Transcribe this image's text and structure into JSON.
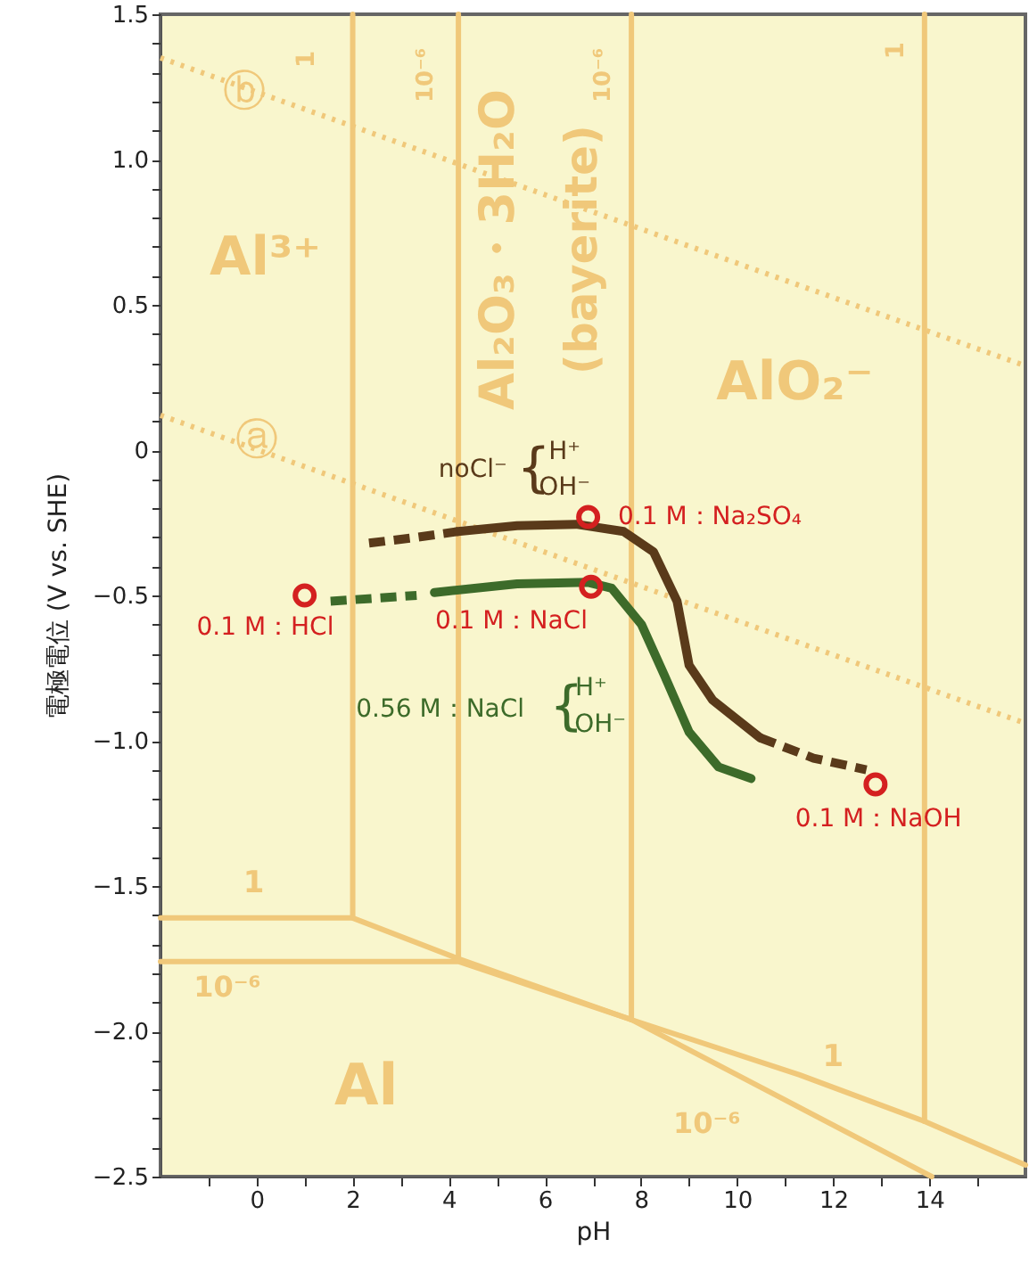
{
  "chart_data": {
    "type": "line",
    "xlabel": "pH",
    "ylabel": "電極電位 (V vs. SHE)",
    "xlim": [
      -2,
      16
    ],
    "ylim": [
      -2.5,
      1.5
    ],
    "xticks": [
      {
        "value": -1,
        "label": null
      },
      0,
      {
        "value": 1,
        "label": null
      },
      2,
      {
        "value": 3,
        "label": null
      },
      4,
      {
        "value": 5,
        "label": null
      },
      6,
      {
        "value": 7,
        "label": null
      },
      8,
      {
        "value": 9,
        "label": null
      },
      10,
      {
        "value": 11,
        "label": null
      },
      12,
      {
        "value": 13,
        "label": null
      },
      14,
      {
        "value": 15,
        "label": null
      }
    ],
    "yticks": [
      {
        "value": 1.5,
        "label": "1.5"
      },
      {
        "value": 1.4,
        "label": null
      },
      {
        "value": 1.3,
        "label": null
      },
      {
        "value": 1.2,
        "label": null
      },
      {
        "value": 1.1,
        "label": null
      },
      {
        "value": 1,
        "label": "1.0"
      },
      {
        "value": 0.9,
        "label": null
      },
      {
        "value": 0.8,
        "label": null
      },
      {
        "value": 0.7,
        "label": null
      },
      {
        "value": 0.6,
        "label": null
      },
      {
        "value": 0.5,
        "label": "0.5"
      },
      {
        "value": 0.4,
        "label": null
      },
      {
        "value": 0.3,
        "label": null
      },
      {
        "value": 0.2,
        "label": null
      },
      {
        "value": 0.1,
        "label": null
      },
      {
        "value": 0,
        "label": "0"
      },
      {
        "value": -0.1,
        "label": null
      },
      {
        "value": -0.2,
        "label": null
      },
      {
        "value": -0.3,
        "label": null
      },
      {
        "value": -0.4,
        "label": null
      },
      {
        "value": -0.5,
        "label": "−0.5"
      },
      {
        "value": -0.6,
        "label": null
      },
      {
        "value": -0.7,
        "label": null
      },
      {
        "value": -0.8,
        "label": null
      },
      {
        "value": -0.9,
        "label": null
      },
      {
        "value": -1,
        "label": "−1.0"
      },
      {
        "value": -1.1,
        "label": null
      },
      {
        "value": -1.2,
        "label": null
      },
      {
        "value": -1.3,
        "label": null
      },
      {
        "value": -1.4,
        "label": null
      },
      {
        "value": -1.5,
        "label": "−1.5"
      },
      {
        "value": -1.6,
        "label": null
      },
      {
        "value": -1.7,
        "label": null
      },
      {
        "value": -1.8,
        "label": null
      },
      {
        "value": -1.9,
        "label": null
      },
      {
        "value": -2,
        "label": "−2.0"
      },
      {
        "value": -2.1,
        "label": null
      },
      {
        "value": -2.2,
        "label": null
      },
      {
        "value": -2.3,
        "label": null
      },
      {
        "value": -2.4,
        "label": null
      },
      {
        "value": -2.5,
        "label": "−2.5"
      }
    ],
    "grid": false,
    "series": [
      {
        "color": "#f0c87a",
        "line_style": "solid",
        "x": [
          2.0,
          2.0
        ],
        "values": [
          1.5,
          -1.61
        ]
      },
      {
        "color": "#f0c87a",
        "line_style": "solid",
        "x": [
          4.2,
          4.2
        ],
        "values": [
          1.5,
          -1.75
        ]
      },
      {
        "color": "#f0c87a",
        "line_style": "solid",
        "x": [
          7.8,
          7.8
        ],
        "values": [
          1.5,
          -1.96
        ]
      },
      {
        "color": "#f0c87a",
        "line_style": "solid",
        "x": [
          13.9,
          13.9
        ],
        "values": [
          1.5,
          -2.31
        ]
      },
      {
        "color": "#f0c87a",
        "line_style": "solid",
        "x": [
          -2,
          2.0,
          4.2,
          7.8,
          11.3,
          13.9,
          16
        ],
        "values": [
          -1.61,
          -1.61,
          -1.75,
          -1.96,
          -2.15,
          -2.31,
          -2.46
        ]
      },
      {
        "color": "#f0c87a",
        "line_style": "solid",
        "x": [
          -2,
          4.2,
          7.8,
          10,
          14.05
        ],
        "values": [
          -1.76,
          -1.76,
          -1.96,
          -2.15,
          -2.5
        ]
      },
      {
        "color": "#f0c87a",
        "line_style": "dotted",
        "x": [
          -2,
          16
        ],
        "values": [
          1.35,
          0.29
        ]
      },
      {
        "color": "#f0c87a",
        "line_style": "dotted",
        "x": [
          -2,
          16
        ],
        "values": [
          0.12,
          -0.94
        ]
      },
      {
        "color": "#5a3a1a",
        "line_style": "dashed",
        "x": [
          2.34,
          3.33,
          4.19
        ],
        "values": [
          -0.32,
          -0.3,
          -0.28
        ]
      },
      {
        "color": "#5a3a1a",
        "line_style": "solid",
        "x": [
          4.19,
          5.42,
          6.65,
          7.64,
          8.26,
          8.75,
          9.0,
          9.49,
          10.48
        ],
        "values": [
          -0.28,
          -0.26,
          -0.255,
          -0.28,
          -0.35,
          -0.52,
          -0.74,
          -0.86,
          -0.99
        ]
      },
      {
        "color": "#5a3a1a",
        "line_style": "dashed",
        "x": [
          10.48,
          11.59,
          12.69
        ],
        "values": [
          -0.99,
          -1.06,
          -1.1
        ]
      },
      {
        "color": "#3d6b2a",
        "line_style": "dashed",
        "x": [
          1.54,
          3.33
        ],
        "values": [
          -0.52,
          -0.5
        ]
      },
      {
        "color": "#3d6b2a",
        "line_style": "solid",
        "x": [
          3.7,
          5.42,
          6.9,
          7.39,
          8.01,
          8.5,
          9.0,
          9.61,
          10.29
        ],
        "values": [
          -0.49,
          -0.46,
          -0.455,
          -0.475,
          -0.6,
          -0.78,
          -0.97,
          -1.09,
          -1.13
        ]
      },
      {
        "type": "scatter",
        "color": "#d42020",
        "x": [
          1.0,
          6.9,
          6.96,
          12.88
        ],
        "values": [
          -0.5,
          -0.23,
          -0.47,
          -1.15
        ]
      }
    ],
    "annotations": [
      "ⓑ",
      "ⓐ",
      "1",
      "10⁻⁶",
      "10⁻⁶",
      "1",
      "Al³⁺",
      "Al₂O₃・3H₂O",
      "(bayerite)",
      "AlO₂⁻",
      "1",
      "10⁻⁶",
      "Al",
      "1",
      "10⁻⁶",
      "noCl⁻",
      "{",
      "H⁺",
      "OH⁻",
      "0.1 M：Na₂SO₄",
      "0.1 M：HCl",
      "0.1 M：NaCl",
      "0.56 M：NaCl",
      "{",
      "H⁺",
      "OH⁻",
      "0.1 M：NaOH"
    ]
  }
}
